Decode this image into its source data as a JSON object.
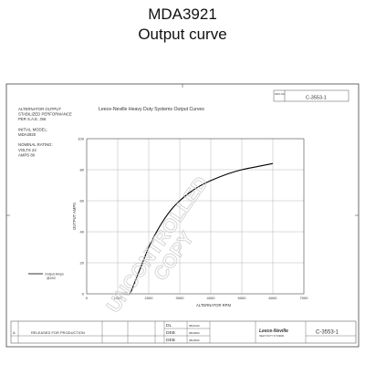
{
  "page": {
    "title": "MDA3921",
    "subtitle": "Output curve"
  },
  "drawing": {
    "number": "C-3553-1",
    "header_drawing_number": "C-3553-1",
    "header_label": "DWG NO.",
    "chart_title": "Leece-Neville Heavy Duty Systems Output Curves",
    "watermark": "UNCONTROLLED COPY",
    "left_notes": [
      "ALTERNATOR OUTPUT",
      "STABILIZED PERFORMANCE",
      "PER S.A.E. J56",
      "",
      "INITIAL MODEL:",
      "MDA3920",
      "",
      "NOMINAL RATING:",
      "VOLTS 24",
      "AMPS 80"
    ],
    "legend_label": "Output Amps @24C",
    "title_block": {
      "rev": "A",
      "release_text": "RELEASED FOR PRODUCTION",
      "signoff_1": "DL",
      "signoff_2": "DEB",
      "signoff_3": "DEB",
      "date_1": "08/21/02",
      "date_2": "08/28/02",
      "date_3": "08/28/02",
      "logo": "Leece-Neville",
      "logo_sub": "HEAVY DUTY SYSTEMS"
    }
  },
  "chart_data": {
    "type": "line",
    "title": "Leece-Neville Heavy Duty Systems Output Curves",
    "xlabel": "ALTERNATOR RPM",
    "ylabel": "OUTPUT AMPS",
    "xlim": [
      0,
      7000
    ],
    "ylim": [
      0,
      100
    ],
    "x_ticks": [
      0,
      1000,
      2000,
      3000,
      4000,
      5000,
      6000,
      7000
    ],
    "y_ticks": [
      0,
      20,
      40,
      60,
      80,
      100
    ],
    "grid": true,
    "legend_position": "left",
    "series": [
      {
        "name": "Output Amps @24C",
        "color": "#000000",
        "x": [
          1400,
          1600,
          1800,
          2000,
          2200,
          2400,
          2600,
          2800,
          3000,
          3300,
          3600,
          4000,
          4500,
          5000,
          5500,
          6000
        ],
        "y": [
          0,
          10,
          20,
          30,
          38,
          45,
          51,
          56,
          60,
          65,
          69,
          73,
          77,
          80,
          82,
          84
        ]
      }
    ]
  }
}
